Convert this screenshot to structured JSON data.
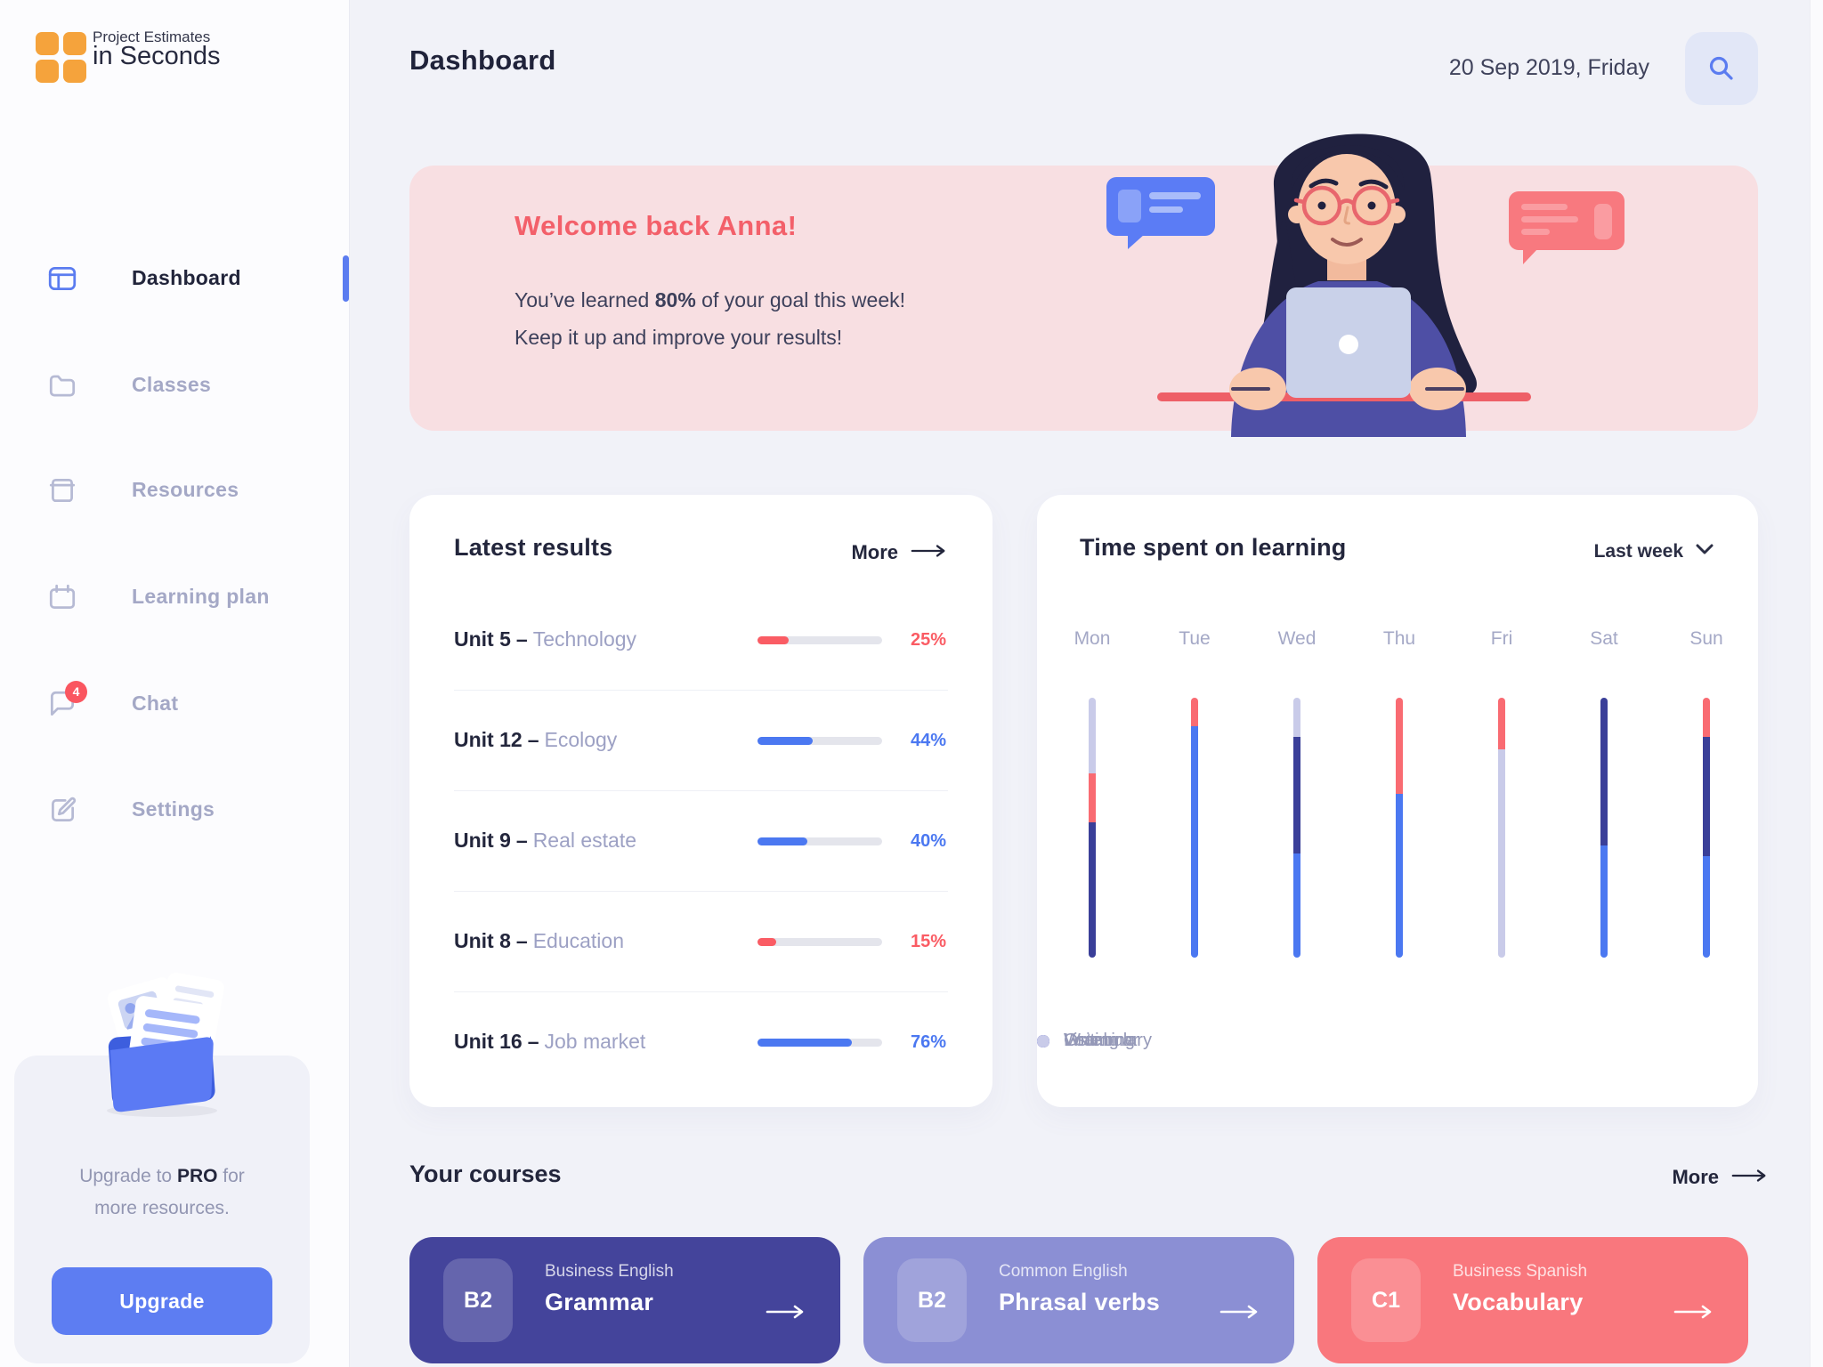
{
  "app": {
    "logo_line1": "Project Estimates",
    "logo_line2": "in Seconds"
  },
  "header": {
    "title": "Dashboard",
    "date": "20 Sep 2019, Friday"
  },
  "sidebar": {
    "items": [
      {
        "label": "Dashboard",
        "active": true
      },
      {
        "label": "Classes"
      },
      {
        "label": "Resources"
      },
      {
        "label": "Learning plan"
      },
      {
        "label": "Chat",
        "badge": "4"
      },
      {
        "label": "Settings"
      }
    ],
    "upgrade": {
      "line1_pre": "Upgrade to ",
      "line1_bold": "PRO",
      "line1_post": " for",
      "line2": "more resources.",
      "button_label": "Upgrade"
    }
  },
  "banner": {
    "title": "Welcome back Anna!",
    "line1_pre": "You’ve learned ",
    "line1_bold": "80%",
    "line1_post": " of your goal this week!",
    "line2": "Keep it up and improve your results!"
  },
  "latest_results": {
    "title": "Latest results",
    "more_label": "More",
    "dash": "–",
    "track_color": "#e4e5ec",
    "rows": [
      {
        "unit": "Unit 5",
        "topic": "Technology",
        "percent": 25,
        "percent_label": "25%",
        "color": "#fa5c64"
      },
      {
        "unit": "Unit 12",
        "topic": "Ecology",
        "percent": 44,
        "percent_label": "44%",
        "color": "#4b78f1"
      },
      {
        "unit": "Unit 9",
        "topic": "Real estate",
        "percent": 40,
        "percent_label": "40%",
        "color": "#4b78f1"
      },
      {
        "unit": "Unit 8",
        "topic": "Education",
        "percent": 15,
        "percent_label": "15%",
        "color": "#fa5c64"
      },
      {
        "unit": "Unit 16",
        "topic": "Job market",
        "percent": 76,
        "percent_label": "76%",
        "color": "#4b78f1"
      }
    ]
  },
  "time_spent": {
    "title": "Time spent on learning",
    "filter_label": "Last week"
  },
  "chart_data": {
    "type": "stacked-bar-100",
    "title": "Time spent on learning",
    "filter": "Last week",
    "categories": [
      "Mon",
      "Tue",
      "Wed",
      "Thu",
      "Fri",
      "Sat",
      "Sun"
    ],
    "series_colors": {
      "Vocabulary": "#f96b72",
      "Grammar": "#3a3f99",
      "Listening": "#4b78f1",
      "Writing": "#c9cbe9"
    },
    "days": [
      {
        "label": "Mon",
        "segments": [
          {
            "name": "Writing",
            "pct": 29
          },
          {
            "name": "Vocabulary",
            "pct": 19
          },
          {
            "name": "Grammar",
            "pct": 52
          }
        ]
      },
      {
        "label": "Tue",
        "segments": [
          {
            "name": "Vocabulary",
            "pct": 11
          },
          {
            "name": "Listening",
            "pct": 89
          }
        ]
      },
      {
        "label": "Wed",
        "segments": [
          {
            "name": "Writing",
            "pct": 15
          },
          {
            "name": "Grammar",
            "pct": 45
          },
          {
            "name": "Listening",
            "pct": 40
          }
        ]
      },
      {
        "label": "Thu",
        "segments": [
          {
            "name": "Vocabulary",
            "pct": 37
          },
          {
            "name": "Listening",
            "pct": 63
          }
        ]
      },
      {
        "label": "Fri",
        "segments": [
          {
            "name": "Vocabulary",
            "pct": 20
          },
          {
            "name": "Writing",
            "pct": 80
          }
        ]
      },
      {
        "label": "Sat",
        "segments": [
          {
            "name": "Grammar",
            "pct": 57
          },
          {
            "name": "Listening",
            "pct": 43
          }
        ]
      },
      {
        "label": "Sun",
        "segments": [
          {
            "name": "Vocabulary",
            "pct": 15
          },
          {
            "name": "Grammar",
            "pct": 46
          },
          {
            "name": "Listening",
            "pct": 39
          }
        ]
      }
    ],
    "legend": [
      "Vocabulary",
      "Grammar",
      "Listening",
      "Writing"
    ],
    "legend_position": "bottom",
    "grid": false,
    "y_axis": "hidden"
  },
  "courses": {
    "title": "Your courses",
    "more_label": "More",
    "cards": [
      {
        "level": "B2",
        "category": "Business English",
        "name": "Grammar",
        "bg": "#44449b"
      },
      {
        "level": "B2",
        "category": "Common English",
        "name": "Phrasal verbs",
        "bg": "#8b8fd4"
      },
      {
        "level": "C1",
        "category": "Business Spanish",
        "name": "Vocabulary",
        "bg": "#f9777d"
      }
    ]
  },
  "icons": {
    "logo": "orange-grid-icon",
    "nav": [
      "dashboard-icon",
      "folder-icon",
      "notebook-icon",
      "calendar-icon",
      "chat-icon",
      "edit-icon"
    ],
    "header": [
      "search-icon"
    ],
    "misc": [
      "arrow-right-icon",
      "chevron-down-icon"
    ]
  },
  "colors": {
    "accent_blue": "#5b7cf0",
    "progress_red": "#fa5c64",
    "progress_blue": "#4b78f1",
    "navy": "#3a3f99",
    "lavender": "#c9cbe9",
    "coral_title": "#f3606a",
    "banner_bg": "#f8dfe2",
    "logo_orange": "#f5a33c",
    "badge_red": "#fa5660",
    "page_bg": "#f1f2f8",
    "sidebar_bg": "#fcfcfe"
  }
}
